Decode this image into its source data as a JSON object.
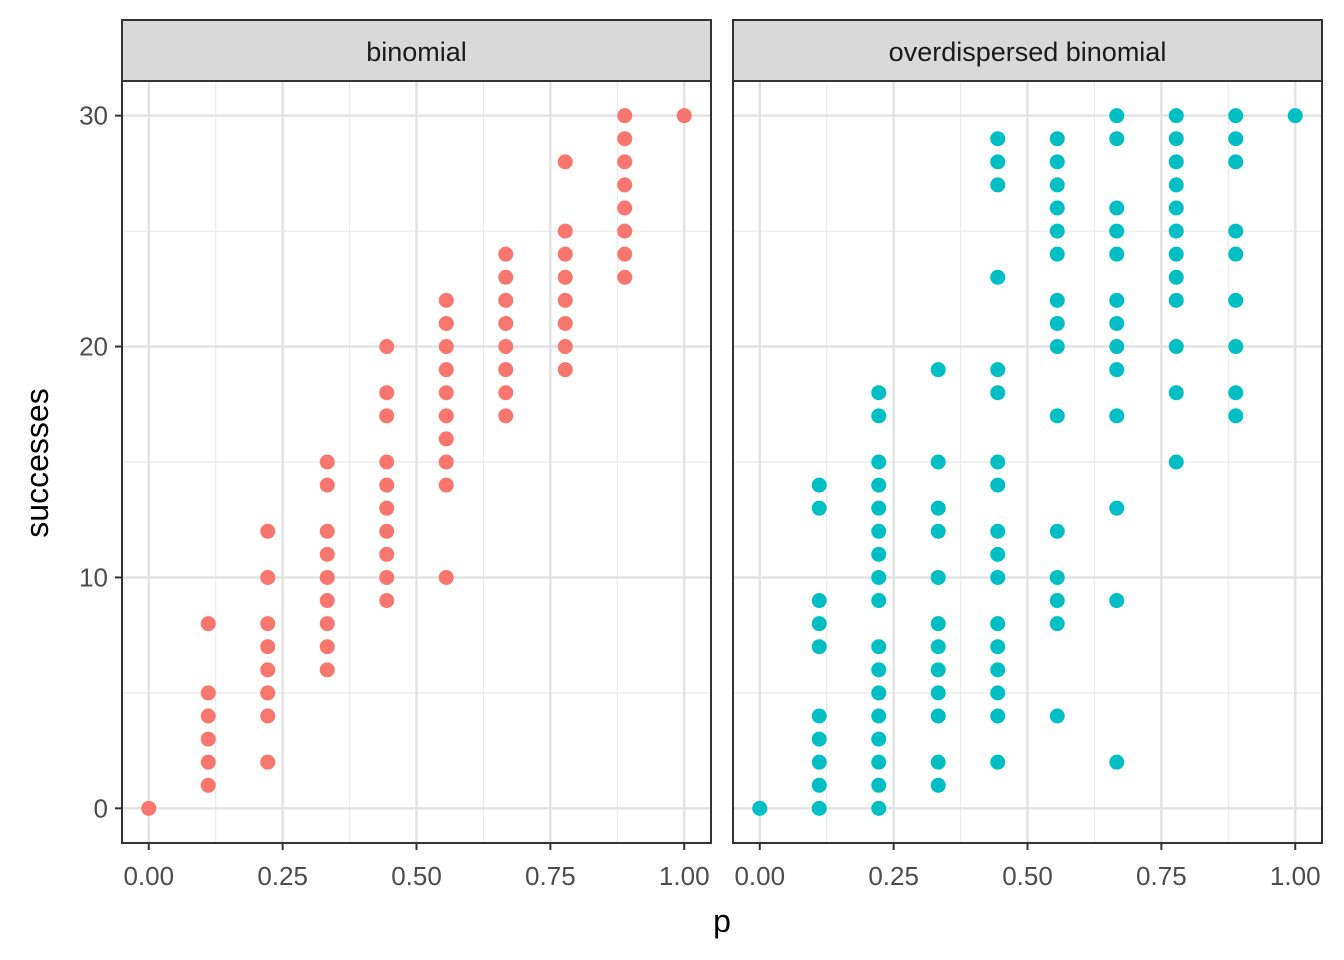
{
  "chart_data": {
    "type": "scatter",
    "xlabel": "p",
    "ylabel": "successes",
    "xlim": [
      -0.05,
      1.05
    ],
    "ylim": [
      -1.5,
      31.5
    ],
    "x_ticks": [
      0,
      0.25,
      0.5,
      0.75,
      1
    ],
    "x_tick_labels": [
      "0.00",
      "0.25",
      "0.50",
      "0.75",
      "1.00"
    ],
    "y_ticks": [
      0,
      10,
      20,
      30
    ],
    "y_tick_labels": [
      "0",
      "10",
      "20",
      "30"
    ],
    "grid": true,
    "legend": "none",
    "panels": [
      {
        "label": "binomial",
        "color": "#F8766D",
        "points": [
          [
            0,
            0
          ],
          [
            0.1111,
            1
          ],
          [
            0.1111,
            2
          ],
          [
            0.1111,
            3
          ],
          [
            0.1111,
            4
          ],
          [
            0.1111,
            5
          ],
          [
            0.1111,
            8
          ],
          [
            0.2222,
            2
          ],
          [
            0.2222,
            4
          ],
          [
            0.2222,
            5
          ],
          [
            0.2222,
            6
          ],
          [
            0.2222,
            7
          ],
          [
            0.2222,
            8
          ],
          [
            0.2222,
            10
          ],
          [
            0.2222,
            12
          ],
          [
            0.3333,
            6
          ],
          [
            0.3333,
            7
          ],
          [
            0.3333,
            8
          ],
          [
            0.3333,
            9
          ],
          [
            0.3333,
            10
          ],
          [
            0.3333,
            11
          ],
          [
            0.3333,
            12
          ],
          [
            0.3333,
            14
          ],
          [
            0.3333,
            15
          ],
          [
            0.4444,
            9
          ],
          [
            0.4444,
            10
          ],
          [
            0.4444,
            11
          ],
          [
            0.4444,
            12
          ],
          [
            0.4444,
            13
          ],
          [
            0.4444,
            14
          ],
          [
            0.4444,
            15
          ],
          [
            0.4444,
            17
          ],
          [
            0.4444,
            18
          ],
          [
            0.4444,
            20
          ],
          [
            0.5556,
            10
          ],
          [
            0.5556,
            14
          ],
          [
            0.5556,
            15
          ],
          [
            0.5556,
            16
          ],
          [
            0.5556,
            17
          ],
          [
            0.5556,
            18
          ],
          [
            0.5556,
            19
          ],
          [
            0.5556,
            20
          ],
          [
            0.5556,
            21
          ],
          [
            0.5556,
            22
          ],
          [
            0.6667,
            17
          ],
          [
            0.6667,
            18
          ],
          [
            0.6667,
            19
          ],
          [
            0.6667,
            20
          ],
          [
            0.6667,
            21
          ],
          [
            0.6667,
            22
          ],
          [
            0.6667,
            23
          ],
          [
            0.6667,
            24
          ],
          [
            0.7778,
            19
          ],
          [
            0.7778,
            20
          ],
          [
            0.7778,
            21
          ],
          [
            0.7778,
            22
          ],
          [
            0.7778,
            23
          ],
          [
            0.7778,
            24
          ],
          [
            0.7778,
            25
          ],
          [
            0.7778,
            28
          ],
          [
            0.8889,
            23
          ],
          [
            0.8889,
            24
          ],
          [
            0.8889,
            25
          ],
          [
            0.8889,
            26
          ],
          [
            0.8889,
            27
          ],
          [
            0.8889,
            28
          ],
          [
            0.8889,
            29
          ],
          [
            0.8889,
            30
          ],
          [
            1,
            30
          ]
        ]
      },
      {
        "label": "overdispersed binomial",
        "color": "#00BFC4",
        "points": [
          [
            0,
            0
          ],
          [
            0.1111,
            0
          ],
          [
            0.1111,
            1
          ],
          [
            0.1111,
            2
          ],
          [
            0.1111,
            3
          ],
          [
            0.1111,
            4
          ],
          [
            0.1111,
            7
          ],
          [
            0.1111,
            8
          ],
          [
            0.1111,
            9
          ],
          [
            0.1111,
            13
          ],
          [
            0.1111,
            14
          ],
          [
            0.2222,
            0
          ],
          [
            0.2222,
            1
          ],
          [
            0.2222,
            2
          ],
          [
            0.2222,
            3
          ],
          [
            0.2222,
            4
          ],
          [
            0.2222,
            5
          ],
          [
            0.2222,
            6
          ],
          [
            0.2222,
            7
          ],
          [
            0.2222,
            9
          ],
          [
            0.2222,
            10
          ],
          [
            0.2222,
            11
          ],
          [
            0.2222,
            12
          ],
          [
            0.2222,
            13
          ],
          [
            0.2222,
            14
          ],
          [
            0.2222,
            15
          ],
          [
            0.2222,
            17
          ],
          [
            0.2222,
            18
          ],
          [
            0.3333,
            1
          ],
          [
            0.3333,
            2
          ],
          [
            0.3333,
            4
          ],
          [
            0.3333,
            5
          ],
          [
            0.3333,
            6
          ],
          [
            0.3333,
            7
          ],
          [
            0.3333,
            8
          ],
          [
            0.3333,
            10
          ],
          [
            0.3333,
            12
          ],
          [
            0.3333,
            13
          ],
          [
            0.3333,
            15
          ],
          [
            0.3333,
            19
          ],
          [
            0.4444,
            2
          ],
          [
            0.4444,
            4
          ],
          [
            0.4444,
            5
          ],
          [
            0.4444,
            6
          ],
          [
            0.4444,
            7
          ],
          [
            0.4444,
            8
          ],
          [
            0.4444,
            10
          ],
          [
            0.4444,
            11
          ],
          [
            0.4444,
            12
          ],
          [
            0.4444,
            14
          ],
          [
            0.4444,
            15
          ],
          [
            0.4444,
            18
          ],
          [
            0.4444,
            19
          ],
          [
            0.4444,
            23
          ],
          [
            0.4444,
            27
          ],
          [
            0.4444,
            28
          ],
          [
            0.4444,
            29
          ],
          [
            0.5556,
            4
          ],
          [
            0.5556,
            8
          ],
          [
            0.5556,
            9
          ],
          [
            0.5556,
            10
          ],
          [
            0.5556,
            12
          ],
          [
            0.5556,
            17
          ],
          [
            0.5556,
            20
          ],
          [
            0.5556,
            21
          ],
          [
            0.5556,
            22
          ],
          [
            0.5556,
            24
          ],
          [
            0.5556,
            25
          ],
          [
            0.5556,
            26
          ],
          [
            0.5556,
            27
          ],
          [
            0.5556,
            28
          ],
          [
            0.5556,
            29
          ],
          [
            0.6667,
            2
          ],
          [
            0.6667,
            9
          ],
          [
            0.6667,
            13
          ],
          [
            0.6667,
            17
          ],
          [
            0.6667,
            19
          ],
          [
            0.6667,
            20
          ],
          [
            0.6667,
            21
          ],
          [
            0.6667,
            22
          ],
          [
            0.6667,
            24
          ],
          [
            0.6667,
            25
          ],
          [
            0.6667,
            26
          ],
          [
            0.6667,
            29
          ],
          [
            0.6667,
            30
          ],
          [
            0.7778,
            15
          ],
          [
            0.7778,
            18
          ],
          [
            0.7778,
            20
          ],
          [
            0.7778,
            22
          ],
          [
            0.7778,
            23
          ],
          [
            0.7778,
            24
          ],
          [
            0.7778,
            25
          ],
          [
            0.7778,
            26
          ],
          [
            0.7778,
            27
          ],
          [
            0.7778,
            28
          ],
          [
            0.7778,
            29
          ],
          [
            0.7778,
            30
          ],
          [
            0.8889,
            17
          ],
          [
            0.8889,
            18
          ],
          [
            0.8889,
            20
          ],
          [
            0.8889,
            22
          ],
          [
            0.8889,
            24
          ],
          [
            0.8889,
            25
          ],
          [
            0.8889,
            28
          ],
          [
            0.8889,
            29
          ],
          [
            0.8889,
            30
          ],
          [
            1,
            30
          ]
        ]
      }
    ]
  }
}
